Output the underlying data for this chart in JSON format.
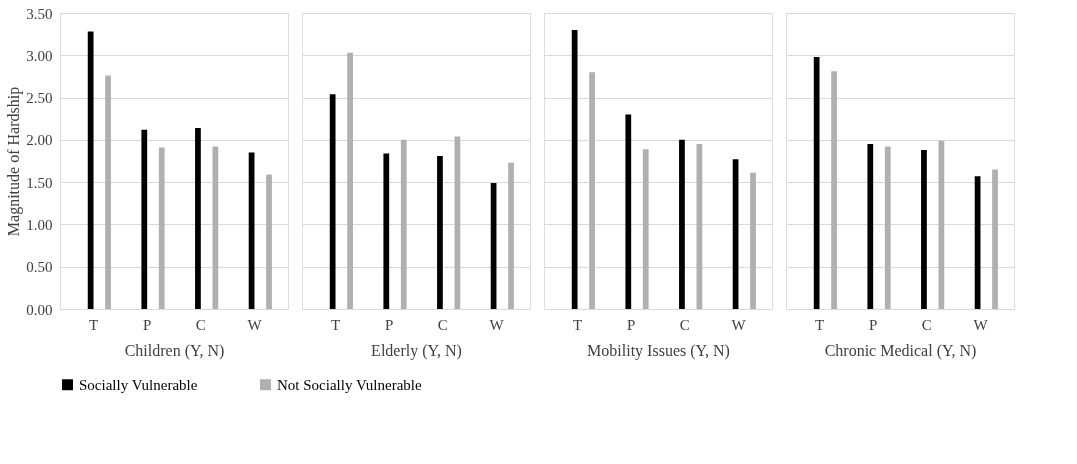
{
  "chart_data": [
    {
      "type": "bar",
      "xlabel": "Children (Y, N)",
      "ylabel": "Magnitude of Hardship",
      "categories": [
        "T",
        "P",
        "C",
        "W"
      ],
      "series": [
        {
          "name": "Socially Vulnerable",
          "color": "#000000",
          "values": [
            3.28,
            2.12,
            2.14,
            1.85
          ]
        },
        {
          "name": "Not Socially Vulnerable",
          "color": "#b0b0b0",
          "values": [
            2.76,
            1.91,
            1.92,
            1.59
          ]
        }
      ],
      "ylim": [
        0,
        3.5
      ],
      "yticks": [
        {
          "value": 0,
          "label": "0.00"
        },
        {
          "value": 0.5,
          "label": "0.50"
        },
        {
          "value": 1,
          "label": "1.00"
        },
        {
          "value": 1.5,
          "label": "1.50"
        },
        {
          "value": 2,
          "label": "2.00"
        },
        {
          "value": 2.5,
          "label": "2.50"
        },
        {
          "value": 3,
          "label": "3.00"
        },
        {
          "value": 3.5,
          "label": "3.50"
        }
      ],
      "grid": "y",
      "legend": "bottom"
    },
    {
      "type": "bar",
      "xlabel": "Elderly (Y, N)",
      "categories": [
        "T",
        "P",
        "C",
        "W"
      ],
      "series": [
        {
          "name": "Socially Vulnerable",
          "color": "#000000",
          "values": [
            2.54,
            1.84,
            1.81,
            1.49
          ]
        },
        {
          "name": "Not Socially Vulnerable",
          "color": "#b0b0b0",
          "values": [
            3.03,
            2.0,
            2.04,
            1.73
          ]
        }
      ],
      "ylim": [
        0,
        3.5
      ],
      "grid": "y",
      "tick_labels": "x",
      "legend": "bottom"
    },
    {
      "type": "bar",
      "xlabel": "Mobility Issues (Y, N)",
      "categories": [
        "T",
        "P",
        "C",
        "W"
      ],
      "series": [
        {
          "name": "Socially Vulnerable",
          "color": "#000000",
          "values": [
            3.3,
            2.3,
            2.0,
            1.77
          ]
        },
        {
          "name": "Not Socially Vulnerable",
          "color": "#b0b0b0",
          "values": [
            2.8,
            1.89,
            1.95,
            1.61
          ]
        }
      ],
      "ylim": [
        0,
        3.5
      ],
      "grid": "y",
      "tick_labels": "x",
      "legend": "bottom"
    },
    {
      "type": "bar",
      "xlabel": "Chronic Medical (Y, N)",
      "categories": [
        "T",
        "P",
        "C",
        "W"
      ],
      "series": [
        {
          "name": "Socially Vulnerable",
          "color": "#000000",
          "values": [
            2.98,
            1.95,
            1.88,
            1.57
          ]
        },
        {
          "name": "Not Socially Vulnerable",
          "color": "#b0b0b0",
          "values": [
            2.81,
            1.92,
            1.99,
            1.65
          ]
        }
      ],
      "ylim": [
        0,
        3.5
      ],
      "grid": "y",
      "tick_labels": "x",
      "legend": "bottom"
    }
  ]
}
